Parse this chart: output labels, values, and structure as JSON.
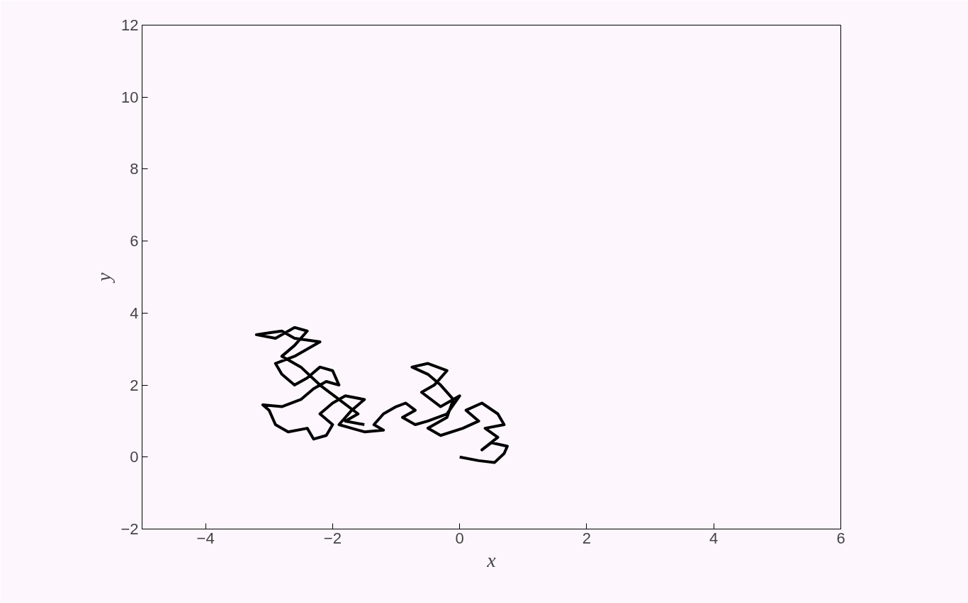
{
  "chart_data": {
    "type": "line",
    "xlabel": "x",
    "ylabel": "y",
    "xlim": [
      -5,
      6
    ],
    "ylim": [
      -2,
      12
    ],
    "xticks": [
      -4,
      -2,
      0,
      2,
      4,
      6
    ],
    "yticks": [
      -2,
      0,
      2,
      4,
      6,
      8,
      10,
      12
    ],
    "grid": false,
    "series": [
      {
        "color": "#000000",
        "x": [
          0.0,
          0.3,
          0.55,
          0.7,
          0.75,
          0.5,
          0.35,
          0.6,
          0.4,
          0.7,
          0.6,
          0.35,
          0.1,
          0.3,
          0.05,
          -0.3,
          -0.5,
          -0.2,
          -0.1,
          -0.3,
          -0.5,
          -0.75,
          -0.5,
          -0.2,
          -0.4,
          -0.6,
          -0.3,
          0.0,
          -0.2,
          -0.5,
          -0.7,
          -0.9,
          -0.7,
          -0.85,
          -1.0,
          -1.2,
          -1.35,
          -1.2,
          -1.5,
          -1.7,
          -1.9,
          -1.7,
          -1.5,
          -1.8,
          -2.0,
          -2.2,
          -2.0,
          -2.1,
          -2.3,
          -2.4,
          -2.7,
          -2.9,
          -3.0,
          -3.1,
          -2.8,
          -2.5,
          -2.3,
          -2.1,
          -1.9,
          -2.0,
          -2.2,
          -2.4,
          -2.6,
          -2.8,
          -2.9,
          -2.6,
          -2.4,
          -2.2,
          -2.6,
          -2.8,
          -3.0,
          -3.2,
          -2.9,
          -2.6,
          -2.4,
          -2.6,
          -2.8,
          -2.5,
          -2.2,
          -1.9,
          -1.6,
          -1.8,
          -1.5
        ],
        "values": [
          0.0,
          -0.1,
          -0.15,
          0.1,
          0.3,
          0.4,
          0.2,
          0.55,
          0.8,
          0.9,
          1.2,
          1.5,
          1.3,
          1.0,
          0.8,
          0.6,
          0.8,
          1.1,
          1.6,
          2.0,
          2.3,
          2.5,
          2.6,
          2.4,
          2.0,
          1.8,
          1.4,
          1.7,
          1.2,
          1.0,
          0.9,
          1.1,
          1.3,
          1.5,
          1.4,
          1.2,
          0.9,
          0.75,
          0.7,
          0.8,
          0.9,
          1.3,
          1.6,
          1.7,
          1.5,
          1.2,
          0.9,
          0.6,
          0.5,
          0.8,
          0.7,
          0.9,
          1.3,
          1.45,
          1.4,
          1.6,
          1.9,
          2.1,
          2.0,
          2.4,
          2.5,
          2.2,
          2.0,
          2.3,
          2.6,
          2.8,
          3.0,
          3.2,
          3.3,
          3.5,
          3.45,
          3.4,
          3.3,
          3.6,
          3.5,
          3.1,
          2.8,
          2.5,
          2.0,
          1.6,
          1.2,
          1.0,
          0.9
        ]
      }
    ]
  }
}
